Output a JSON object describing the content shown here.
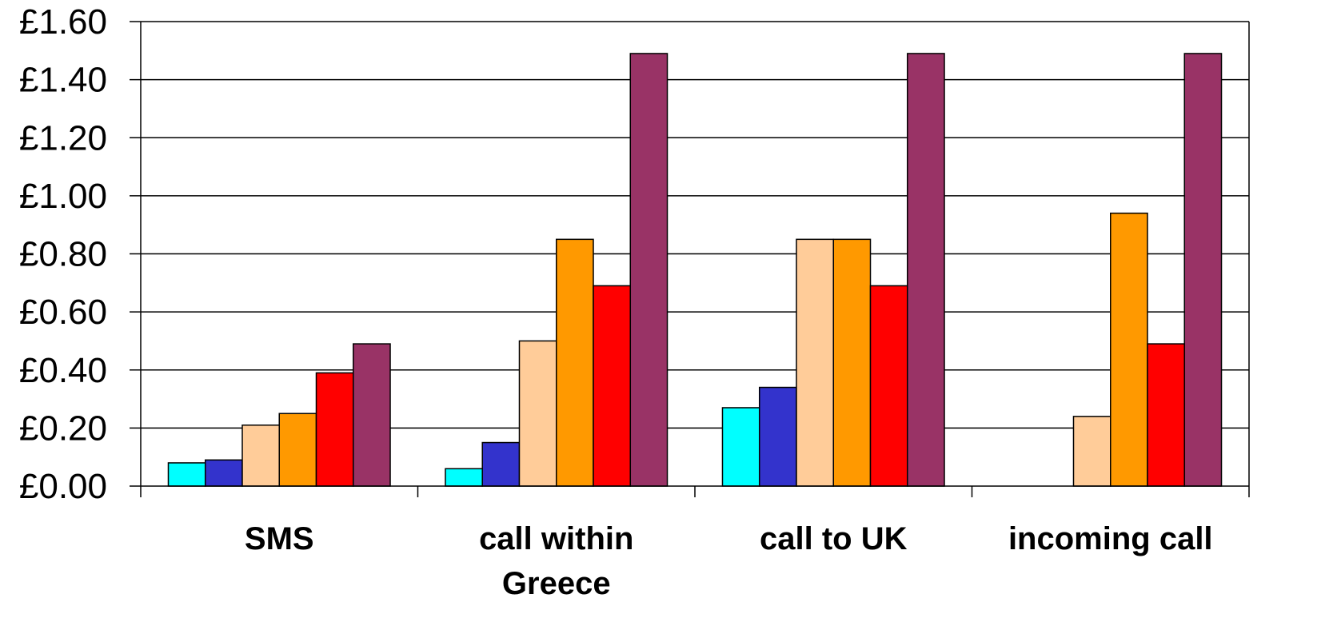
{
  "chart_data": {
    "type": "bar",
    "categories": [
      [
        "SMS"
      ],
      [
        "call within",
        "Greece"
      ],
      [
        "call to UK"
      ],
      [
        "incoming call"
      ]
    ],
    "series": [
      {
        "color": "#00FFFF",
        "values": [
          0.08,
          0.06,
          0.27,
          0
        ]
      },
      {
        "color": "#3333CC",
        "values": [
          0.09,
          0.15,
          0.34,
          0
        ]
      },
      {
        "color": "#FFCC99",
        "values": [
          0.21,
          0.5,
          0.85,
          0.24
        ]
      },
      {
        "color": "#FF9900",
        "values": [
          0.25,
          0.85,
          0.85,
          0.94
        ]
      },
      {
        "color": "#FF0000",
        "values": [
          0.39,
          0.69,
          0.69,
          0.49
        ]
      },
      {
        "color": "#993366",
        "values": [
          0.49,
          1.49,
          1.49,
          1.49
        ]
      }
    ],
    "yticks": [
      "£0.00",
      "£0.20",
      "£0.40",
      "£0.60",
      "£0.80",
      "£1.00",
      "£1.20",
      "£1.40",
      "£1.60"
    ],
    "ylim": [
      0,
      1.6
    ],
    "ystep": 0.2,
    "grid": true,
    "legend": "none"
  }
}
